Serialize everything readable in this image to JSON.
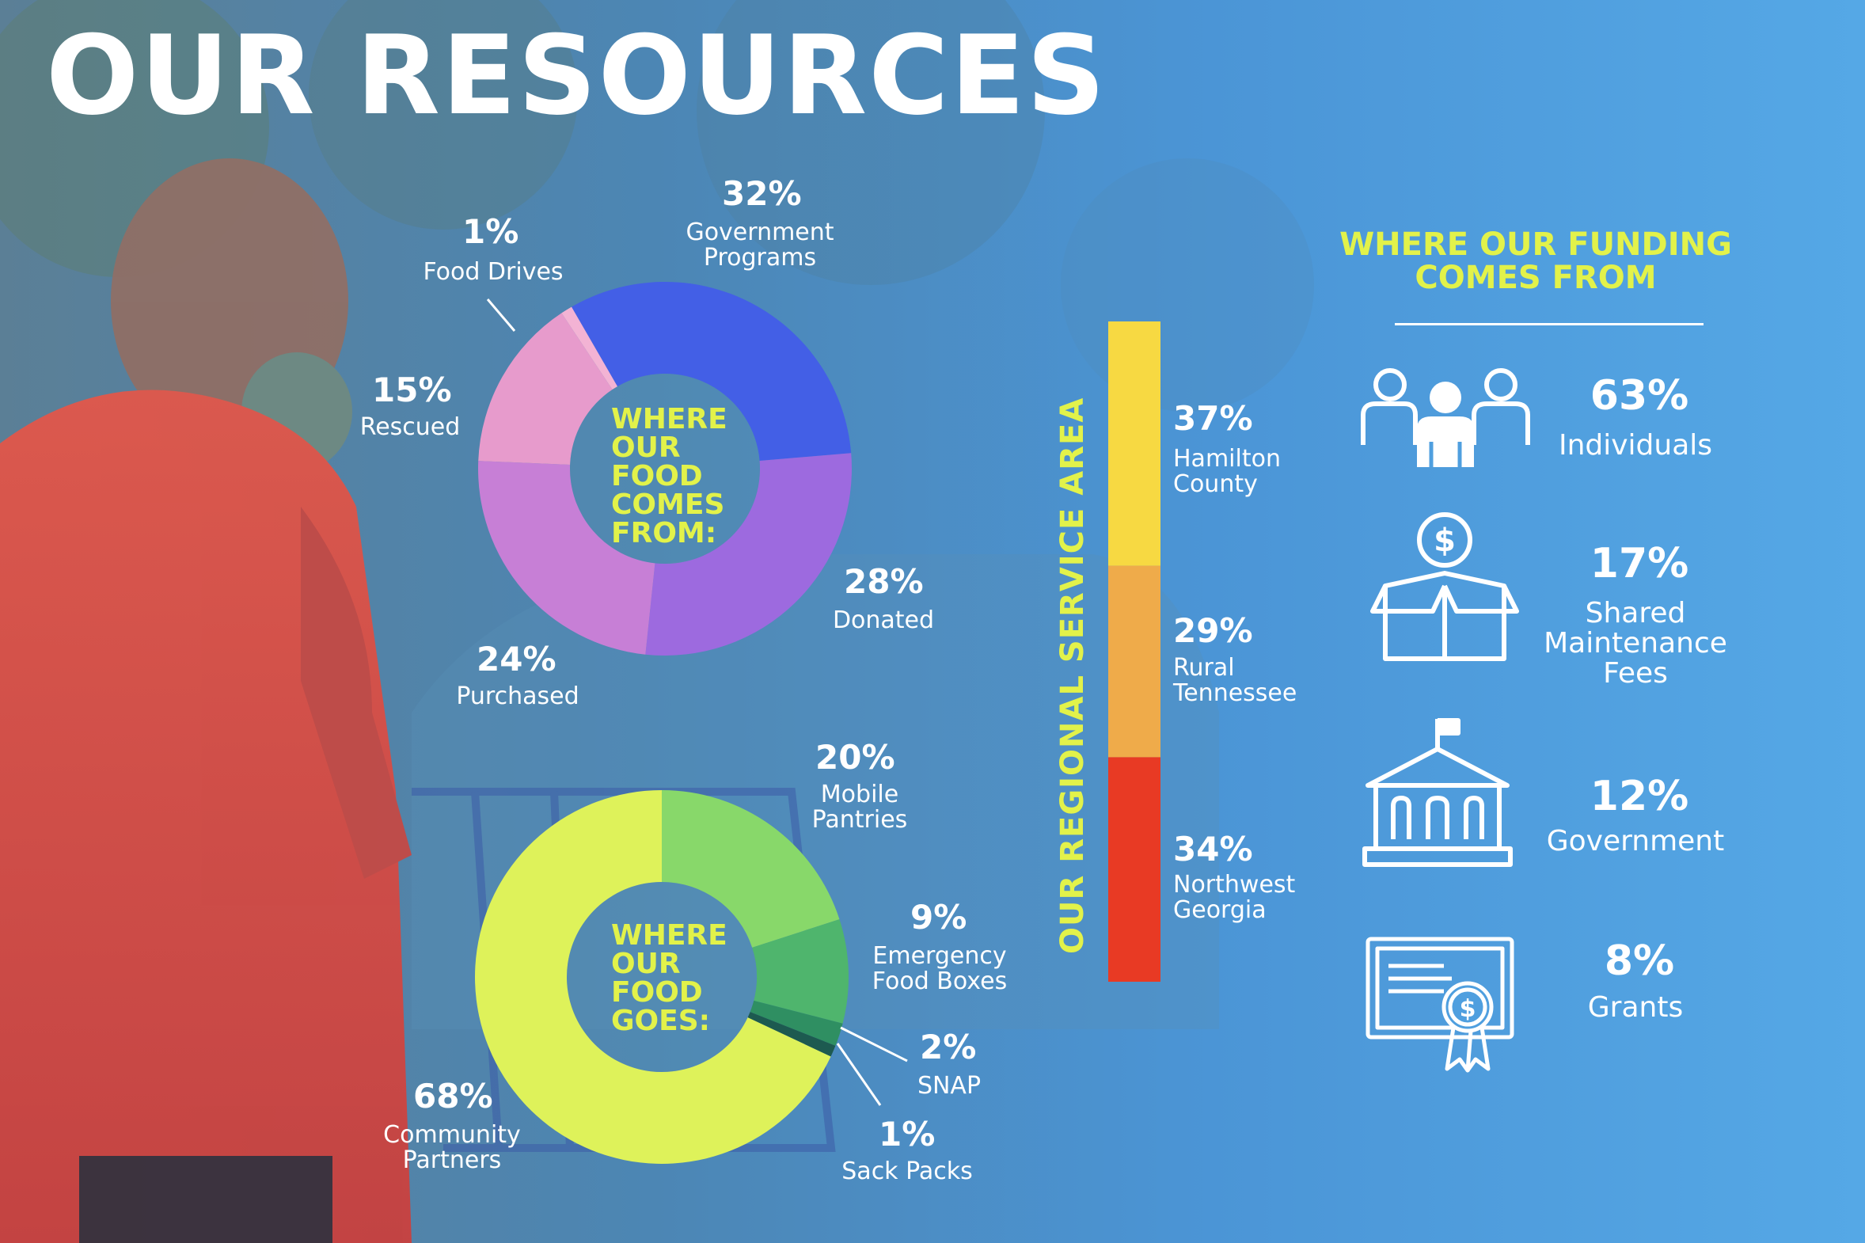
{
  "page": {
    "title": "OUR RESOURCES"
  },
  "colors": {
    "accent_yellow": "#e2f24a",
    "background_blue": "#4f9fdf"
  },
  "chart_data": [
    {
      "type": "donut",
      "center_label": "WHERE\nOUR\nFOOD\nCOMES\nFROM:",
      "slices": [
        {
          "label": "Government\nPrograms",
          "value": 32,
          "pct_text": "32%",
          "color": "#435fe6"
        },
        {
          "label": "Donated",
          "value": 28,
          "pct_text": "28%",
          "color": "#9d6adf"
        },
        {
          "label": "Purchased",
          "value": 24,
          "pct_text": "24%",
          "color": "#c77fd6"
        },
        {
          "label": "Rescued",
          "value": 15,
          "pct_text": "15%",
          "color": "#e79bcc"
        },
        {
          "label": "Food Drives",
          "value": 1,
          "pct_text": "1%",
          "color": "#f3b3d4"
        }
      ]
    },
    {
      "type": "donut",
      "center_label": "WHERE\nOUR\nFOOD\nGOES:",
      "slices": [
        {
          "label": "Mobile\nPantries",
          "value": 20,
          "pct_text": "20%",
          "color": "#88d86a"
        },
        {
          "label": "Emergency\nFood Boxes",
          "value": 9,
          "pct_text": "9%",
          "color": "#4fb56d"
        },
        {
          "label": "SNAP",
          "value": 2,
          "pct_text": "2%",
          "color": "#2f8f62"
        },
        {
          "label": "Sack Packs",
          "value": 1,
          "pct_text": "1%",
          "color": "#1d5a50"
        },
        {
          "label": "Community\nPartners",
          "value": 68,
          "pct_text": "68%",
          "color": "#def25a"
        }
      ]
    },
    {
      "type": "stacked_bar",
      "title": "OUR REGIONAL SERVICE AREA",
      "segments": [
        {
          "label": "Hamilton\nCounty",
          "value": 37,
          "pct_text": "37%",
          "color": "#f7d942"
        },
        {
          "label": "Rural\nTennessee",
          "value": 29,
          "pct_text": "29%",
          "color": "#efab4a"
        },
        {
          "label": "Northwest\nGeorgia",
          "value": 34,
          "pct_text": "34%",
          "color": "#e83a24"
        }
      ]
    },
    {
      "type": "icon_list",
      "title": "WHERE OUR FUNDING\nCOMES FROM",
      "items": [
        {
          "label": "Individuals",
          "value": 63,
          "pct_text": "63%",
          "icon": "people-icon"
        },
        {
          "label": "Shared\nMaintenance\nFees",
          "value": 17,
          "pct_text": "17%",
          "icon": "donation-box-icon"
        },
        {
          "label": "Government",
          "value": 12,
          "pct_text": "12%",
          "icon": "government-building-icon"
        },
        {
          "label": "Grants",
          "value": 8,
          "pct_text": "8%",
          "icon": "grant-certificate-icon"
        }
      ]
    }
  ]
}
